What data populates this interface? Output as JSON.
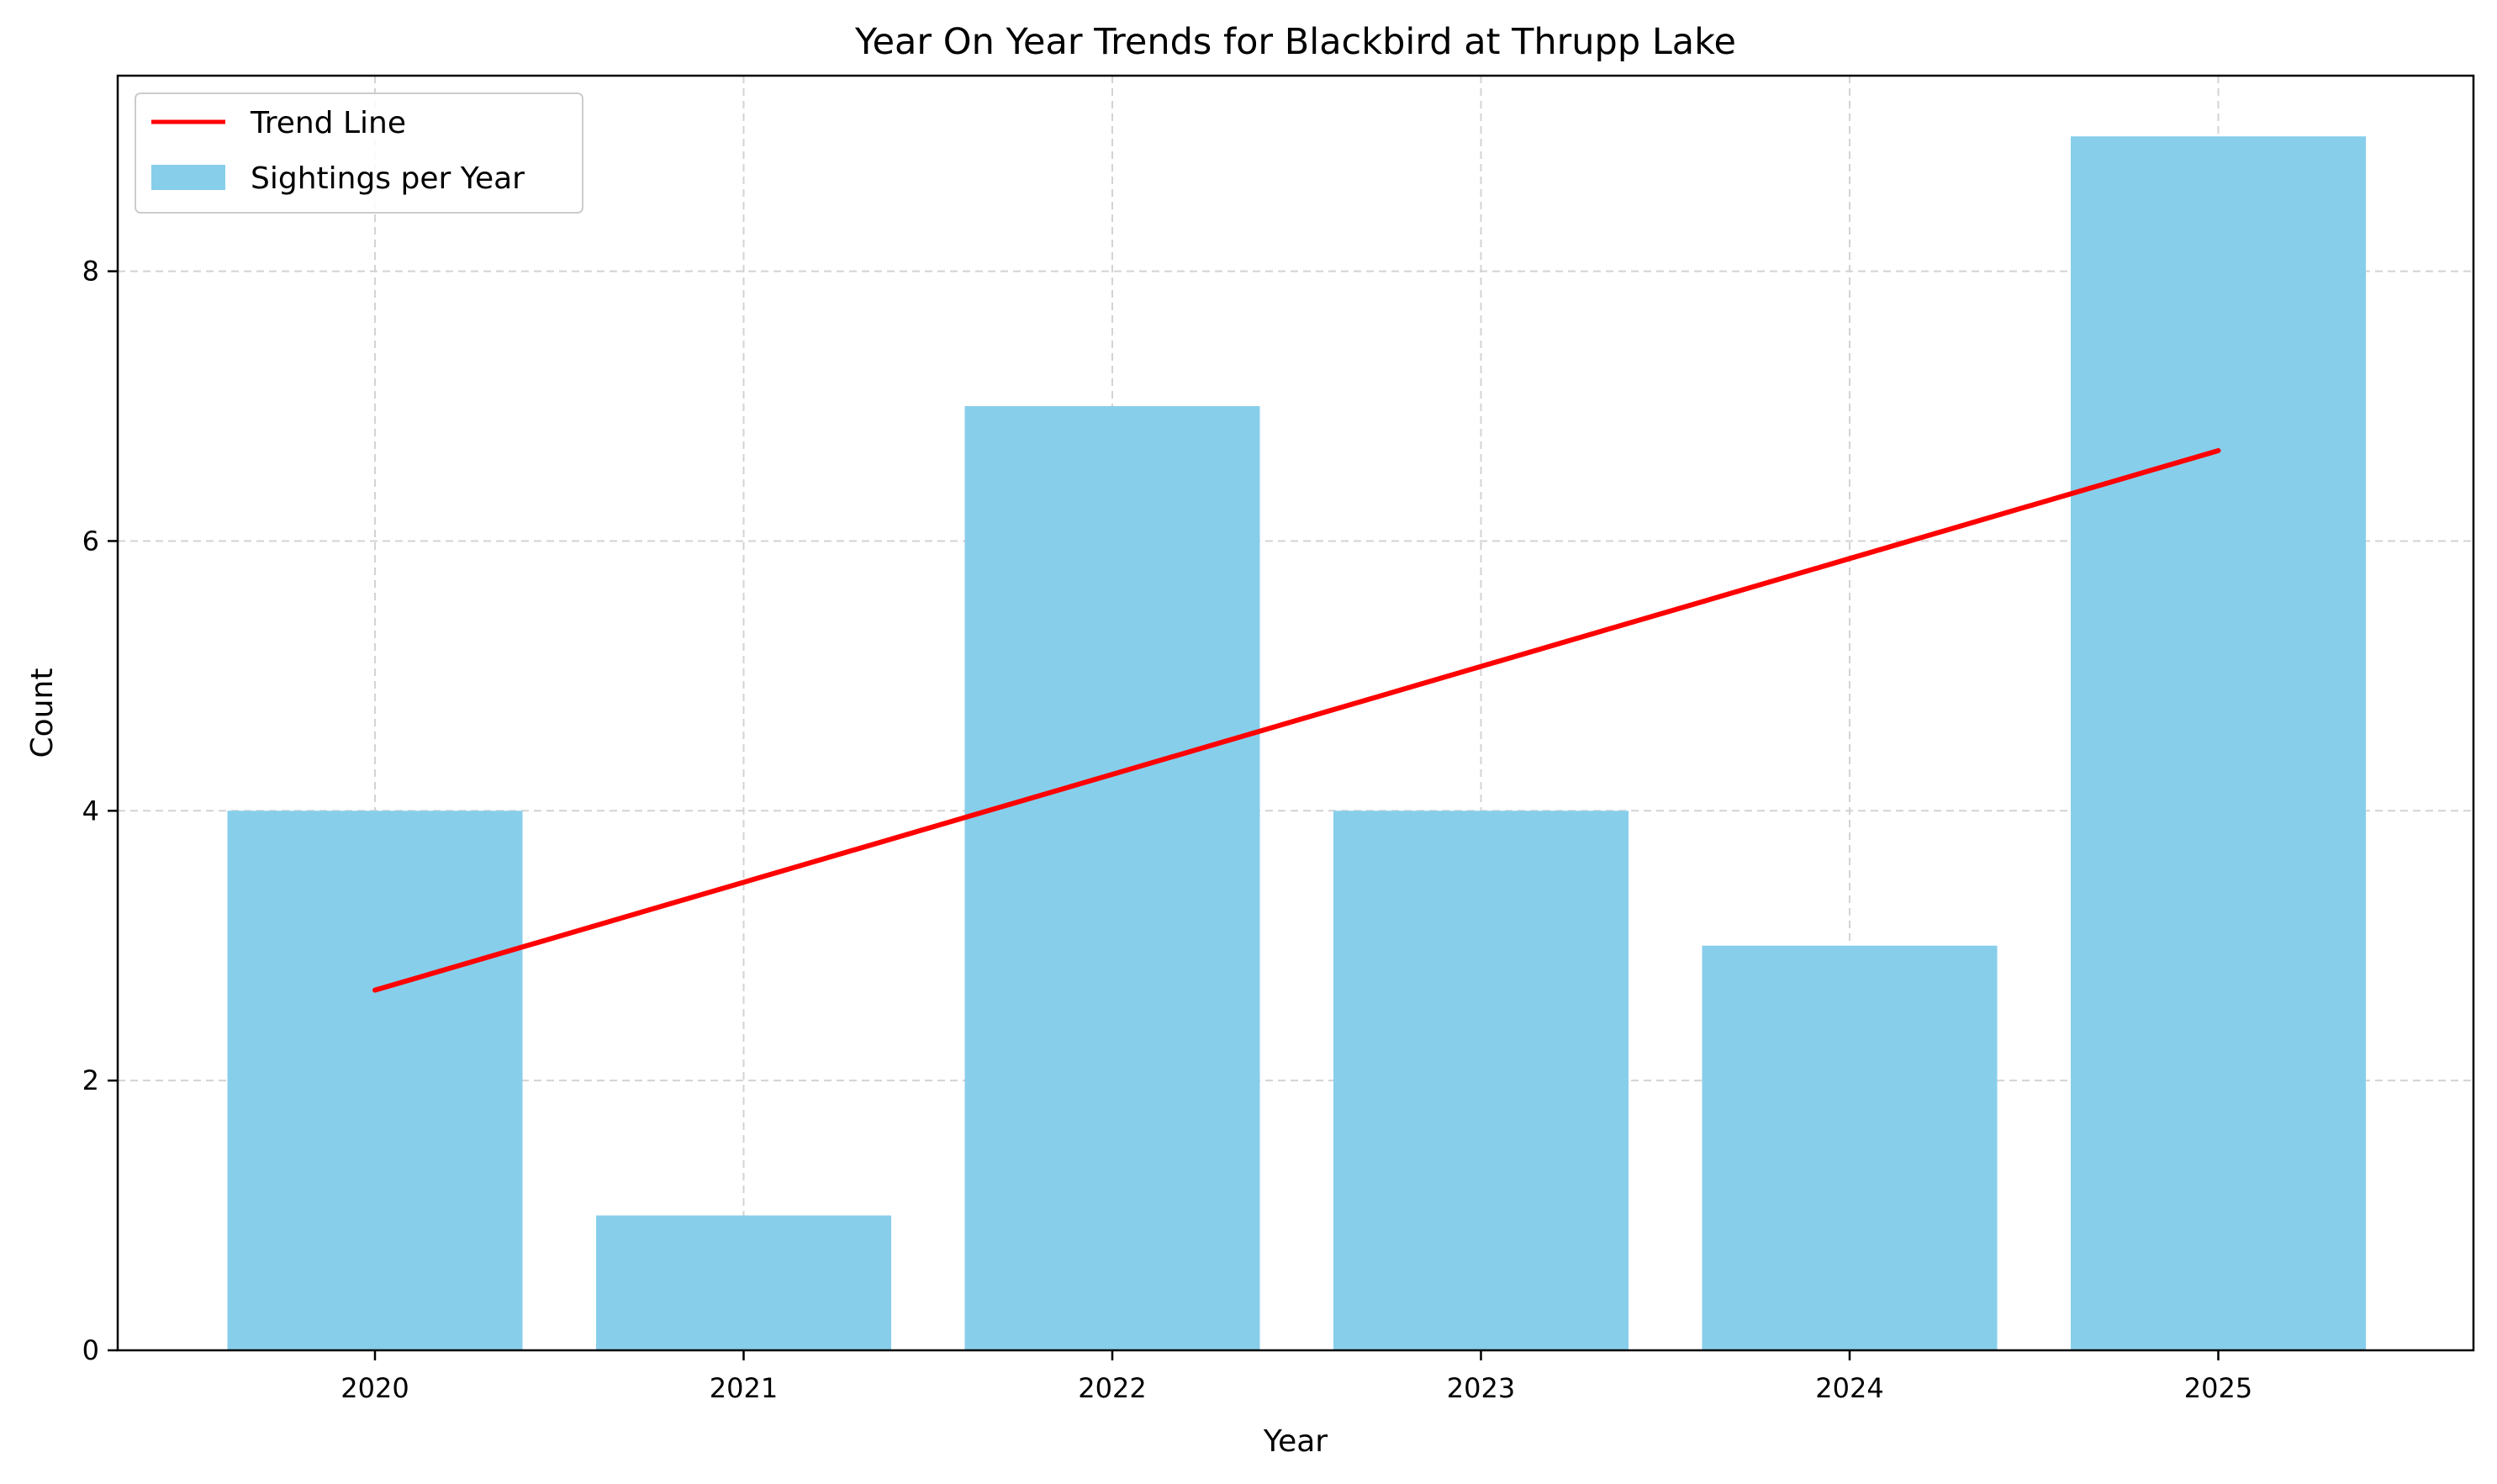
{
  "chart_data": {
    "type": "bar",
    "title": "Year On Year Trends for Blackbird at Thrupp Lake",
    "xlabel": "Year",
    "ylabel": "Count",
    "categories": [
      "2020",
      "2021",
      "2022",
      "2023",
      "2024",
      "2025"
    ],
    "series": [
      {
        "name": "Sightings per Year",
        "type": "bar",
        "values": [
          4,
          1,
          7,
          4,
          3,
          9
        ]
      },
      {
        "name": "Trend Line",
        "type": "line",
        "values": [
          2.67,
          3.47,
          4.27,
          5.07,
          5.87,
          6.67
        ]
      }
    ],
    "ylim": [
      0,
      9.45
    ],
    "yticks": [
      0,
      2,
      4,
      6,
      8
    ],
    "grid": true,
    "legend": "top-left",
    "colors": {
      "bars": "#87CEEB",
      "trend": "#FF0000",
      "grid": "#d3d3d3"
    }
  }
}
